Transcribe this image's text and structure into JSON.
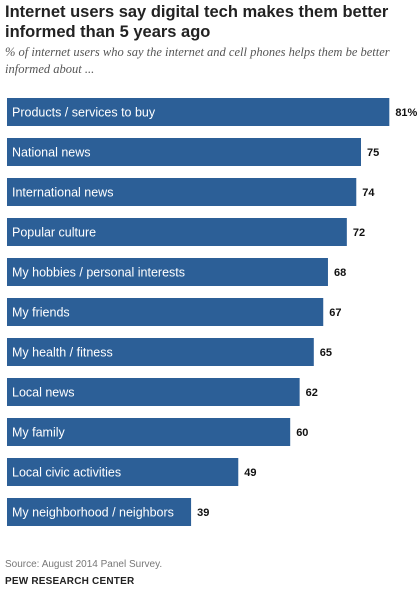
{
  "header": {
    "title": "Internet users say digital tech makes them better informed than 5 years ago",
    "subtitle": "% of internet users who say the internet and cell phones helps them be better informed about ..."
  },
  "footer": {
    "source": "Source: August 2014 Panel Survey.",
    "organization": "PEW RESEARCH CENTER"
  },
  "colors": {
    "bar": "#2c5f97",
    "bar_text": "#ffffff",
    "value_text": "#111111"
  },
  "chart_data": {
    "type": "bar",
    "orientation": "horizontal",
    "categories": [
      "Products / services to buy",
      "National news",
      "International news",
      "Popular culture",
      "My hobbies / personal interests",
      "My friends",
      "My health / fitness",
      "Local news",
      "My family",
      "Local civic activities",
      "My neighborhood / neighbors"
    ],
    "values": [
      81,
      75,
      74,
      72,
      68,
      67,
      65,
      62,
      60,
      49,
      39
    ],
    "value_labels": [
      "81%",
      "75",
      "74",
      "72",
      "68",
      "67",
      "65",
      "62",
      "60",
      "49",
      "39"
    ],
    "title": "Internet users say digital tech makes them better informed than 5 years ago",
    "xlim": [
      0,
      100
    ],
    "grid": false,
    "legend": "none"
  }
}
